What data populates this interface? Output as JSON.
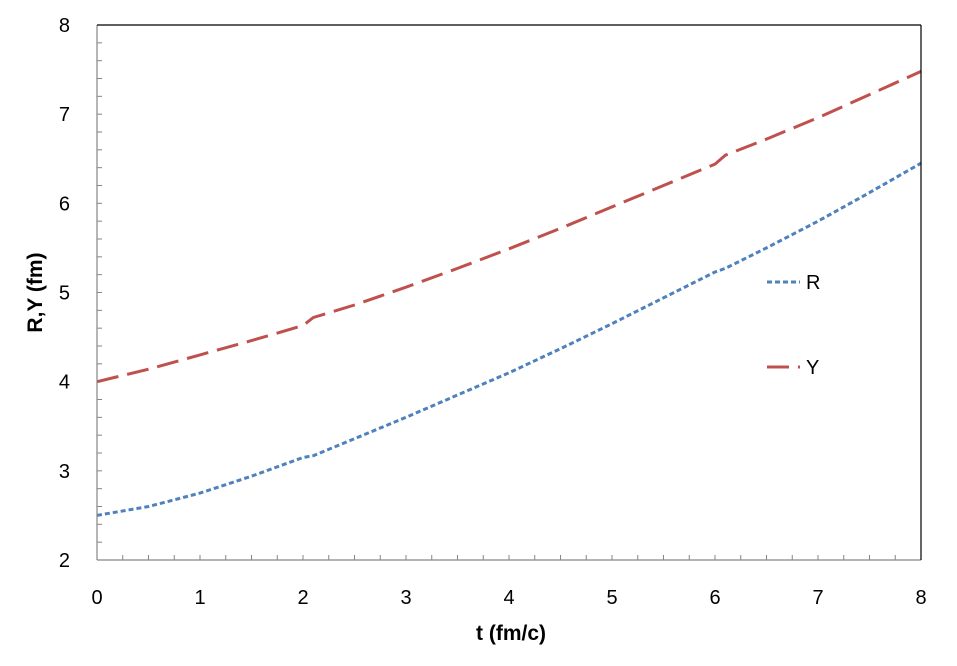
{
  "chart_data": {
    "type": "line",
    "xlabel": "t  (fm/c)",
    "ylabel": "R,Y  (fm)",
    "xlim": [
      0,
      8
    ],
    "ylim": [
      2,
      8
    ],
    "x_ticks": [
      0,
      1,
      2,
      3,
      4,
      5,
      6,
      7,
      8
    ],
    "y_ticks": [
      2,
      3,
      4,
      5,
      6,
      7,
      8
    ],
    "grid": false,
    "legend_position": "right",
    "series": [
      {
        "name": "R",
        "color": "#4f81bd",
        "dash": "dotted",
        "x": [
          0,
          0.5,
          1,
          1.5,
          2,
          2.1,
          2.5,
          3,
          3.5,
          4,
          4.5,
          5,
          5.5,
          6,
          6.1,
          6.5,
          7,
          7.5,
          8
        ],
        "y": [
          2.5,
          2.6,
          2.75,
          2.94,
          3.15,
          3.17,
          3.36,
          3.6,
          3.85,
          4.1,
          4.37,
          4.65,
          4.94,
          5.23,
          5.27,
          5.5,
          5.8,
          6.12,
          6.45
        ]
      },
      {
        "name": "Y",
        "color": "#c0504d",
        "dash": "dashed",
        "x": [
          0,
          0.5,
          1,
          1.5,
          2,
          2.1,
          2.5,
          3,
          3.5,
          4,
          4.5,
          5,
          5.5,
          6,
          6.1,
          6.5,
          7,
          7.5,
          8
        ],
        "y": [
          4.0,
          4.14,
          4.3,
          4.46,
          4.63,
          4.72,
          4.86,
          5.06,
          5.27,
          5.49,
          5.72,
          5.96,
          6.2,
          6.44,
          6.54,
          6.72,
          6.96,
          7.22,
          7.48
        ]
      }
    ]
  }
}
